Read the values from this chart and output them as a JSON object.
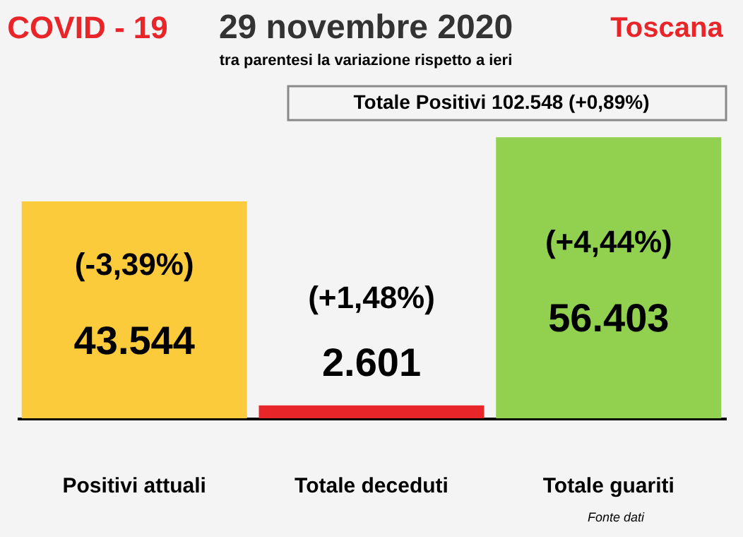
{
  "chart_data": {
    "type": "bar",
    "title": "29 novembre 2020",
    "subtitle": "tra parentesi la variazione rispetto a ieri",
    "categories": [
      "Positivi attuali",
      "Totale deceduti",
      "Totale guariti"
    ],
    "values": [
      43544,
      2601,
      56403
    ],
    "colors": [
      "#fccb3c",
      "#e8262a",
      "#92d050"
    ],
    "value_labels": [
      "43.544",
      "2.601",
      "56.403"
    ],
    "annotations": [
      "(-3,39%)",
      "(+1,48%)",
      "(+4,44%)",
      "COVID - 19",
      "Toscana",
      "Totale Positivi    102.548 (+0,89%)",
      "Fonte dati"
    ],
    "tick_labels": "x",
    "legend": false
  }
}
